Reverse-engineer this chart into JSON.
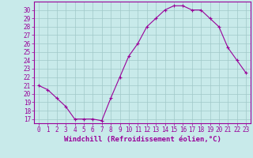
{
  "x": [
    0,
    1,
    2,
    3,
    4,
    5,
    6,
    7,
    8,
    9,
    10,
    11,
    12,
    13,
    14,
    15,
    16,
    17,
    18,
    19,
    20,
    21,
    22,
    23
  ],
  "y": [
    21,
    20.5,
    19.5,
    18.5,
    17,
    17,
    17,
    16.8,
    19.5,
    22,
    24.5,
    26,
    28,
    29,
    30,
    30.5,
    30.5,
    30,
    30,
    29,
    28,
    25.5,
    24,
    22.5
  ],
  "line_color": "#990099",
  "marker_color": "#990099",
  "bg_color": "#c8eaea",
  "grid_color": "#a0c8c8",
  "axis_color": "#990099",
  "xlabel": "Windchill (Refroidissement éolien,°C)",
  "xlabel_color": "#990099",
  "ylabel_ticks": [
    17,
    18,
    19,
    20,
    21,
    22,
    23,
    24,
    25,
    26,
    27,
    28,
    29,
    30
  ],
  "ylim": [
    16.5,
    31.0
  ],
  "xlim": [
    -0.5,
    23.5
  ],
  "xtick_labels": [
    "0",
    "1",
    "2",
    "3",
    "4",
    "5",
    "6",
    "7",
    "8",
    "9",
    "10",
    "11",
    "12",
    "13",
    "14",
    "15",
    "16",
    "17",
    "18",
    "19",
    "20",
    "21",
    "22",
    "23"
  ],
  "tick_fontsize": 5.5,
  "xlabel_fontsize": 6.5
}
